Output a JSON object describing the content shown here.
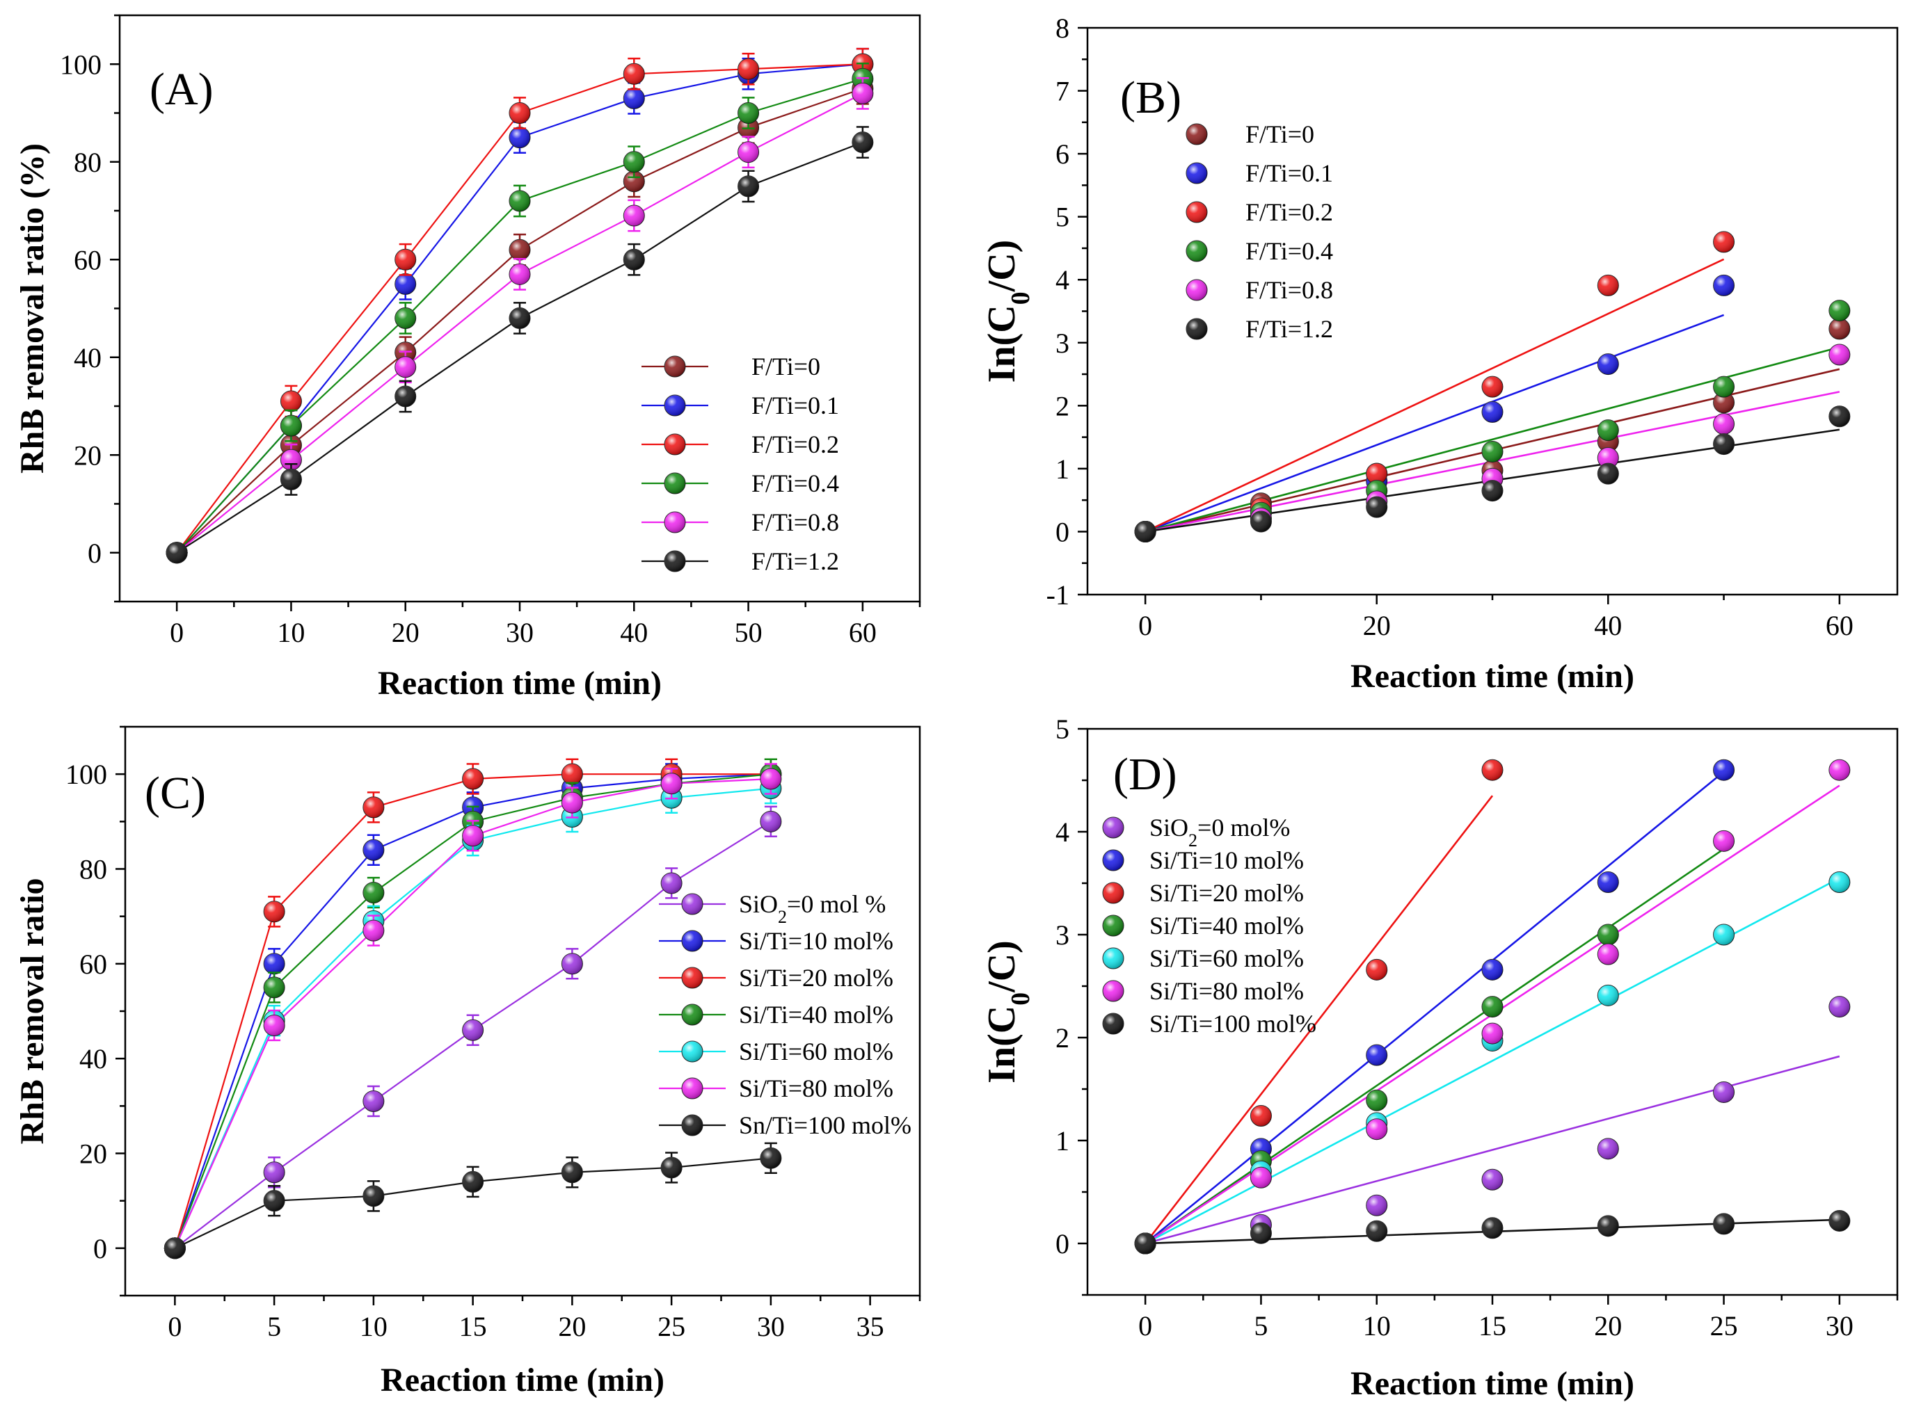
{
  "chart_data": [
    {
      "type": "scatter",
      "panel_label": "(A)",
      "title": "",
      "xlabel": "Reaction time  (min)",
      "ylabel": "RhB removal ratio (%)",
      "xlim": [
        -5,
        65
      ],
      "ylim": [
        -10,
        110
      ],
      "xticks": [
        0,
        10,
        20,
        30,
        40,
        50,
        60
      ],
      "yticks": [
        0,
        20,
        40,
        60,
        80,
        100
      ],
      "legend_position": "lower-right",
      "lines": "connect",
      "error_bars": true,
      "x": [
        0,
        10,
        20,
        30,
        40,
        50,
        60
      ],
      "series": [
        {
          "name": "F/Ti=0",
          "color": "#8b1a1a",
          "values": [
            0,
            22,
            41,
            62,
            76,
            87,
            95
          ]
        },
        {
          "name": "F/Ti=0.1",
          "color": "#1515e6",
          "values": [
            0,
            26,
            55,
            85,
            93,
            98,
            100
          ]
        },
        {
          "name": "F/Ti=0.2",
          "color": "#ee1111",
          "values": [
            0,
            31,
            60,
            90,
            98,
            99,
            100
          ]
        },
        {
          "name": "F/Ti=0.4",
          "color": "#128a12",
          "values": [
            0,
            26,
            48,
            72,
            80,
            90,
            97
          ]
        },
        {
          "name": "F/Ti=0.8",
          "color": "#ee22ee",
          "values": [
            0,
            19,
            38,
            57,
            69,
            82,
            94
          ]
        },
        {
          "name": "F/Ti=1.2",
          "color": "#111111",
          "values": [
            0,
            15,
            32,
            48,
            60,
            75,
            84
          ]
        }
      ]
    },
    {
      "type": "scatter",
      "panel_label": "(B)",
      "title": "",
      "xlabel": "Reaction time  (min)",
      "ylabel": "In(C0/C)",
      "xlim": [
        -5,
        65
      ],
      "ylim": [
        -1,
        8
      ],
      "xticks": [
        0,
        20,
        40,
        60
      ],
      "yticks": [
        -1,
        0,
        1,
        2,
        3,
        4,
        5,
        6,
        7,
        8
      ],
      "legend_position": "upper-left",
      "lines": "fit",
      "error_bars": false,
      "x": [
        0,
        10,
        20,
        30,
        40,
        50,
        60
      ],
      "series": [
        {
          "name": "F/Ti=0",
          "color": "#8b1a1a",
          "values": [
            0,
            0.45,
            0.92,
            0.97,
            1.43,
            2.05,
            3.22
          ],
          "fit_slope": 0.043,
          "fit_xmax": 60
        },
        {
          "name": "F/Ti=0.1",
          "color": "#1515e6",
          "values": [
            0,
            0.3,
            0.8,
            1.9,
            2.66,
            3.91
          ],
          "fit_slope": 0.0688,
          "fit_xmax": 50
        },
        {
          "name": "F/Ti=0.2",
          "color": "#ee1111",
          "values": [
            0,
            0.37,
            0.92,
            2.3,
            3.91,
            4.6
          ],
          "fit_slope": 0.0865,
          "fit_xmax": 50
        },
        {
          "name": "F/Ti=0.4",
          "color": "#128a12",
          "values": [
            0,
            0.3,
            0.65,
            1.27,
            1.61,
            2.3,
            3.51
          ],
          "fit_slope": 0.0488,
          "fit_xmax": 60
        },
        {
          "name": "F/Ti=0.8",
          "color": "#ee22ee",
          "values": [
            0,
            0.21,
            0.48,
            0.84,
            1.17,
            1.71,
            2.81
          ],
          "fit_slope": 0.037,
          "fit_xmax": 60
        },
        {
          "name": "F/Ti=1.2",
          "color": "#111111",
          "values": [
            0,
            0.16,
            0.39,
            0.65,
            0.92,
            1.39,
            1.83
          ],
          "fit_slope": 0.027,
          "fit_xmax": 60
        }
      ]
    },
    {
      "type": "scatter",
      "panel_label": "(C)",
      "title": "",
      "xlabel": "Reaction time  (min)",
      "ylabel": "RhB removal ratio",
      "xlim": [
        -2.5,
        37.5
      ],
      "ylim": [
        -10,
        110
      ],
      "xticks": [
        0,
        5,
        10,
        15,
        20,
        25,
        30,
        35
      ],
      "yticks": [
        0,
        20,
        40,
        60,
        80,
        100
      ],
      "legend_position": "lower-right",
      "lines": "connect",
      "error_bars": true,
      "x": [
        0,
        5,
        10,
        15,
        20,
        25,
        30
      ],
      "series": [
        {
          "name": "SiO2=0 mol %",
          "color": "#9a30e0",
          "values": [
            0,
            16,
            31,
            46,
            60,
            77,
            90
          ]
        },
        {
          "name": "Si/Ti=10 mol%",
          "color": "#1515e6",
          "values": [
            0,
            60,
            84,
            93,
            97,
            99,
            100
          ]
        },
        {
          "name": "Si/Ti=20 mol%",
          "color": "#ee1111",
          "values": [
            0,
            71,
            93,
            99,
            100,
            100,
            100
          ]
        },
        {
          "name": "Si/Ti=40 mol%",
          "color": "#128a12",
          "values": [
            0,
            55,
            75,
            90,
            95,
            98,
            100
          ]
        },
        {
          "name": "Si/Ti=60 mol%",
          "color": "#11e8ee",
          "values": [
            0,
            48,
            69,
            86,
            91,
            95,
            97
          ]
        },
        {
          "name": "Si/Ti=80 mol%",
          "color": "#ee22ee",
          "values": [
            0,
            47,
            67,
            87,
            94,
            98,
            99
          ]
        },
        {
          "name": "Sn/Ti=100 mol%",
          "color": "#111111",
          "values": [
            0,
            10,
            11,
            14,
            16,
            17,
            19
          ]
        }
      ]
    },
    {
      "type": "scatter",
      "panel_label": "(D)",
      "title": "",
      "xlabel": "Reaction time  (min)",
      "ylabel": "In(C0/C)",
      "xlim": [
        -2.5,
        32.5
      ],
      "ylim": [
        -0.5,
        5
      ],
      "xticks": [
        0,
        5,
        10,
        15,
        20,
        25,
        30
      ],
      "yticks": [
        0,
        1,
        2,
        3,
        4,
        5
      ],
      "legend_position": "upper-left",
      "lines": "fit",
      "error_bars": false,
      "x": [
        0,
        5,
        10,
        15,
        20,
        25,
        30
      ],
      "series": [
        {
          "name": "SiO2=0 mol%",
          "color": "#9a30e0",
          "values": [
            0,
            0.18,
            0.37,
            0.62,
            0.92,
            1.47,
            2.3
          ],
          "fit_slope": 0.0606,
          "fit_xmax": 30
        },
        {
          "name": "Si/Ti=10 mol%",
          "color": "#1515e6",
          "values": [
            0,
            0.92,
            1.83,
            2.66,
            3.51,
            4.6
          ],
          "fit_slope": 0.1833,
          "fit_xmax": 25
        },
        {
          "name": "Si/Ti=20 mol%",
          "color": "#ee1111",
          "values": [
            0,
            1.24,
            2.66,
            4.6
          ],
          "fit_slope": 0.29,
          "fit_xmax": 15
        },
        {
          "name": "Si/Ti=40 mol%",
          "color": "#128a12",
          "values": [
            0,
            0.8,
            1.39,
            2.3,
            3.0
          ],
          "fit_slope": 0.1533,
          "fit_xmax": 25
        },
        {
          "name": "Si/Ti=60 mol%",
          "color": "#11e8ee",
          "values": [
            0,
            0.7,
            1.17,
            1.97,
            2.41,
            3.0,
            3.51
          ],
          "fit_slope": 0.1183,
          "fit_xmax": 30
        },
        {
          "name": "Si/Ti=80 mol%",
          "color": "#ee22ee",
          "values": [
            0,
            0.64,
            1.11,
            2.04,
            2.81,
            3.91,
            4.6
          ],
          "fit_slope": 0.1483,
          "fit_xmax": 30
        },
        {
          "name": "Si/Ti=100 mol%",
          "color": "#111111",
          "values": [
            0,
            0.1,
            0.12,
            0.15,
            0.17,
            0.19,
            0.22
          ],
          "fit_slope": 0.0077,
          "fit_xmax": 30
        }
      ]
    }
  ]
}
